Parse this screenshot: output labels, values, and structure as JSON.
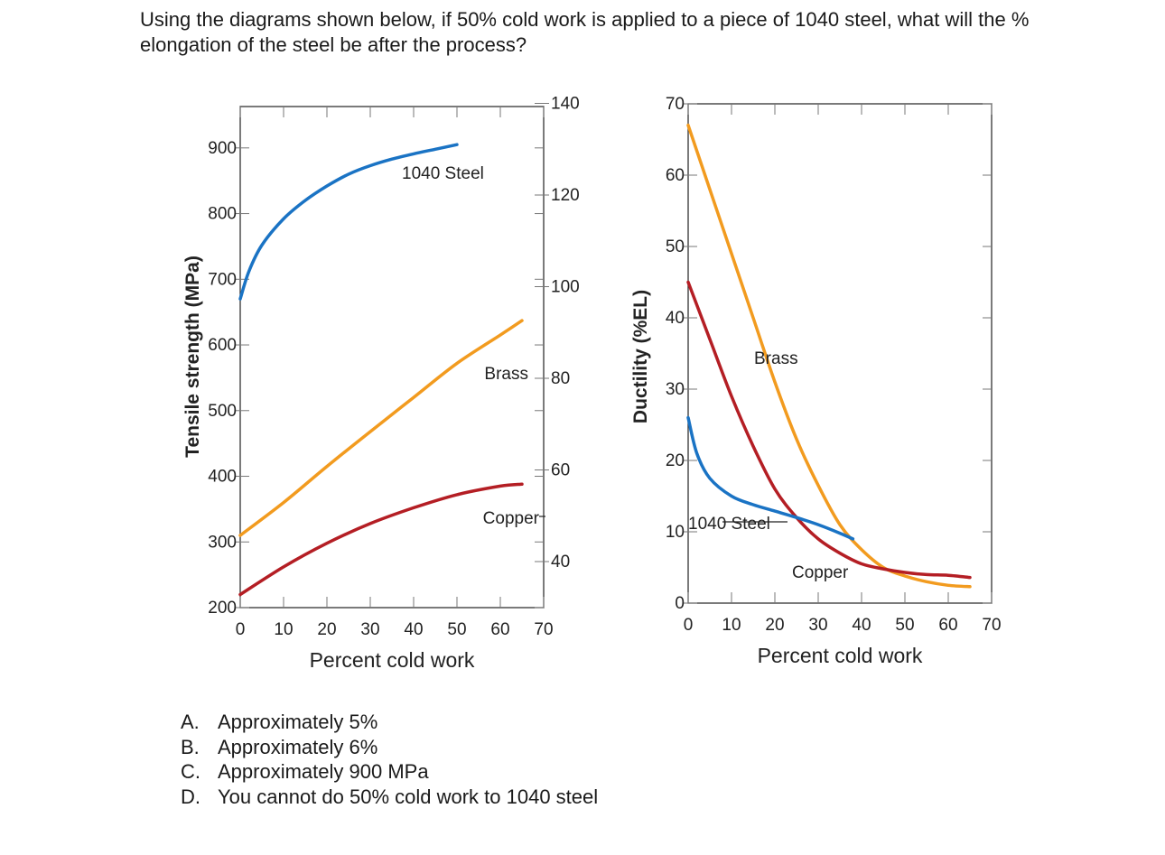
{
  "question": "Using the diagrams shown below, if 50% cold work is applied to a piece of 1040 steel, what will the % elongation of the steel be after the process?",
  "options": [
    {
      "letter": "A.",
      "text": "Approximately 5%"
    },
    {
      "letter": "B.",
      "text": "Approximately 6%"
    },
    {
      "letter": "C.",
      "text": "Approximately 900 MPa"
    },
    {
      "letter": "D.",
      "text": "You cannot do 50% cold work to 1040 steel"
    }
  ],
  "colors": {
    "steel": "#1a73c4",
    "brass": "#f29b1f",
    "copper": "#b41e24",
    "frame": "#333333",
    "grid": "#777777"
  },
  "chart_data": [
    {
      "type": "line",
      "xlabel": "Percent cold work",
      "ylabel": "Tensile strength (MPa)",
      "xticks": [
        "0",
        "10",
        "20",
        "30",
        "40",
        "50",
        "60",
        "70"
      ],
      "yticks": [
        "200",
        "300",
        "400",
        "500",
        "600",
        "700",
        "800",
        "900"
      ],
      "right_ticks": [
        "40",
        "60",
        "80",
        "100",
        "120",
        "140"
      ],
      "xlim": [
        0,
        70
      ],
      "ylim": [
        200,
        950
      ],
      "grid": true,
      "series": [
        {
          "name": "1040 Steel",
          "color_key": "steel",
          "x": [
            0,
            2,
            5,
            10,
            15,
            20,
            25,
            30,
            35,
            40,
            45,
            50
          ],
          "y": [
            670,
            712,
            752,
            792,
            820,
            842,
            860,
            873,
            883,
            891,
            898,
            905
          ]
        },
        {
          "name": "Brass",
          "color_key": "brass",
          "x": [
            0,
            10,
            20,
            30,
            40,
            50,
            60,
            65
          ],
          "y": [
            310,
            360,
            415,
            468,
            520,
            572,
            615,
            637
          ]
        },
        {
          "name": "Copper",
          "color_key": "copper",
          "x": [
            0,
            10,
            20,
            30,
            40,
            50,
            60,
            65
          ],
          "y": [
            220,
            262,
            298,
            328,
            352,
            372,
            385,
            388
          ]
        }
      ]
    },
    {
      "type": "line",
      "xlabel": "Percent cold work",
      "ylabel": "Ductility (%EL)",
      "xticks": [
        "0",
        "10",
        "20",
        "30",
        "40",
        "50",
        "60",
        "70"
      ],
      "yticks": [
        "0",
        "10",
        "20",
        "30",
        "40",
        "50",
        "60",
        "70"
      ],
      "xlim": [
        0,
        70
      ],
      "ylim": [
        0,
        70
      ],
      "grid": true,
      "series": [
        {
          "name": "Brass",
          "color_key": "brass",
          "x": [
            0,
            5,
            10,
            15,
            20,
            25,
            30,
            35,
            40,
            45,
            50,
            55,
            60,
            65
          ],
          "y": [
            67,
            58,
            49,
            40,
            31,
            23,
            16.5,
            11,
            7.5,
            5,
            3.8,
            3,
            2.5,
            2.3
          ]
        },
        {
          "name": "Copper",
          "color_key": "copper",
          "x": [
            0,
            5,
            10,
            15,
            20,
            25,
            30,
            35,
            40,
            45,
            50,
            55,
            60,
            65
          ],
          "y": [
            45,
            37,
            29,
            22,
            16,
            12,
            9,
            7,
            5.5,
            4.8,
            4.3,
            4,
            3.9,
            3.6
          ]
        },
        {
          "name": "1040 Steel",
          "color_key": "steel",
          "x": [
            0,
            2,
            5,
            10,
            15,
            20,
            25,
            30,
            35,
            38
          ],
          "y": [
            26,
            21,
            17.5,
            15,
            13.8,
            12.9,
            12,
            11,
            9.8,
            9
          ]
        }
      ]
    }
  ]
}
